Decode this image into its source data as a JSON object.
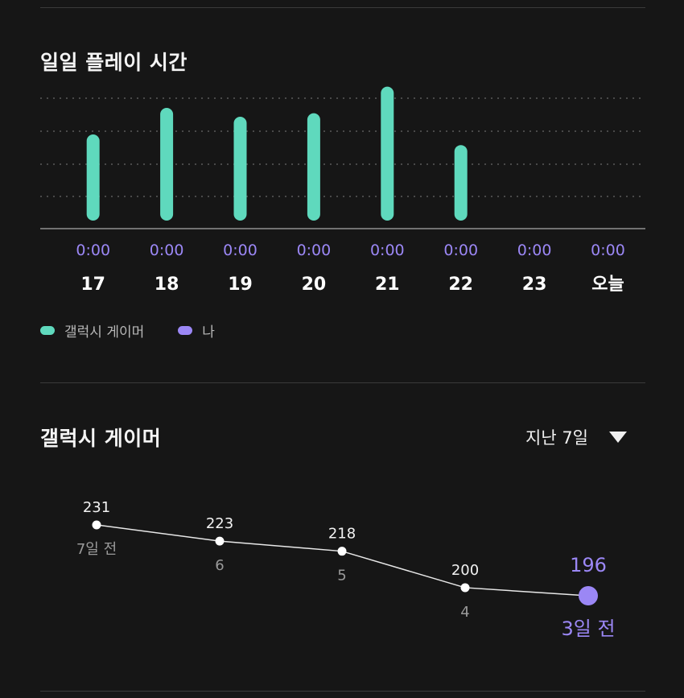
{
  "daily": {
    "title": "일일 플레이 시간",
    "colors": {
      "galaxy": "#5fd9bd",
      "me": "#9b87f5"
    },
    "chart_data": {
      "type": "bar",
      "categories": [
        "17",
        "18",
        "19",
        "20",
        "21",
        "22",
        "23",
        "오늘"
      ],
      "time_labels": [
        "0:00",
        "0:00",
        "0:00",
        "0:00",
        "0:00",
        "0:00",
        "0:00",
        "0:00"
      ],
      "series": [
        {
          "name": "갤럭시 게이머",
          "values": [
            90,
            120,
            110,
            114,
            144,
            78,
            0,
            0
          ]
        }
      ],
      "ylim": [
        0,
        150
      ],
      "grid": true,
      "legend_placement": "bottom-left"
    },
    "legend": [
      {
        "label": "갤럭시 게이머",
        "color": "#5fd9bd"
      },
      {
        "label": "나",
        "color": "#9b87f5"
      }
    ]
  },
  "ranking": {
    "title": "갤럭시 게이머",
    "period": {
      "selected": "지난 7일"
    },
    "chart_data": {
      "type": "line",
      "x": [
        "7일 전",
        "6",
        "5",
        "4",
        "3일 전"
      ],
      "values": [
        231,
        223,
        218,
        200,
        196
      ],
      "highlight_index": 4,
      "highlight_color": "#9b87f5"
    }
  }
}
